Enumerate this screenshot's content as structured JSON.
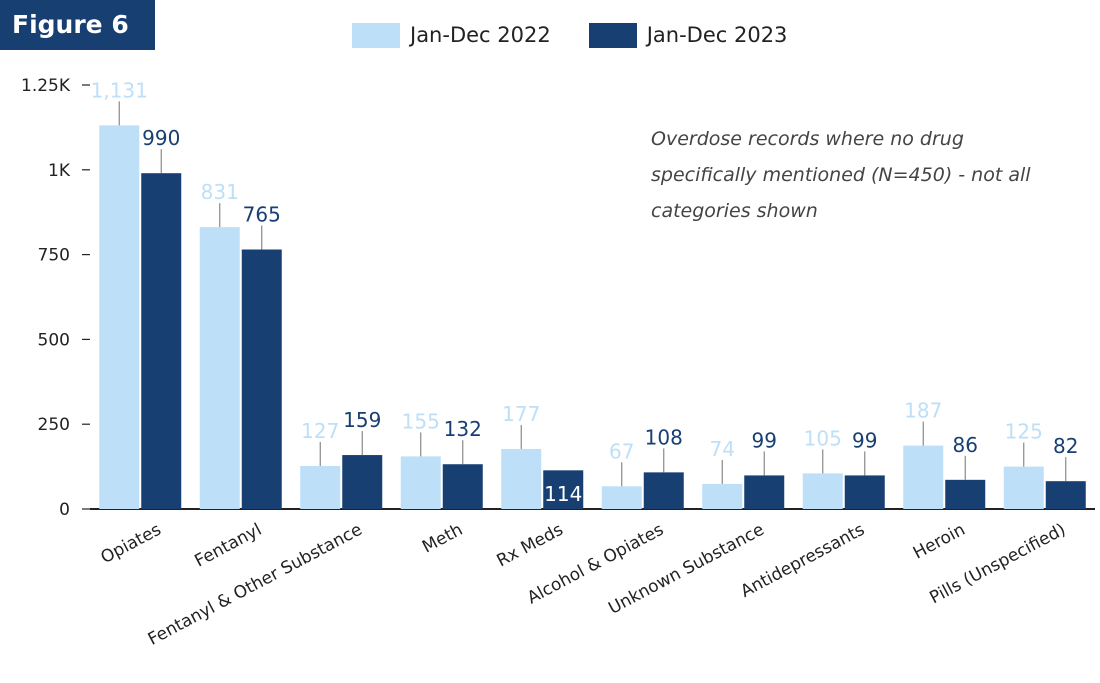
{
  "figure_label": "Figure 6",
  "note": "Overdose records where no drug specifically mentioned (N=450) - not all categories shown",
  "colors": {
    "series_2022": "#bddff8",
    "series_2023": "#173f72",
    "badge": "#173f72"
  },
  "chart_data": {
    "type": "bar",
    "categories": [
      "Opiates",
      "Fentanyl",
      "Fentanyl & Other Substance",
      "Meth",
      "Rx Meds",
      "Alcohol & Opiates",
      "Unknown Substance",
      "Antidepressants",
      "Heroin",
      "Pills (Unspecified)"
    ],
    "series": [
      {
        "name": "Jan-Dec 2022",
        "values": [
          1131,
          831,
          127,
          155,
          177,
          67,
          74,
          105,
          187,
          125
        ],
        "labels": [
          "1,131",
          "831",
          "127",
          "155",
          "177",
          "67",
          "74",
          "105",
          "187",
          "125"
        ]
      },
      {
        "name": "Jan-Dec 2023",
        "values": [
          990,
          765,
          159,
          132,
          114,
          108,
          99,
          99,
          86,
          82
        ],
        "labels": [
          "990",
          "765",
          "159",
          "132",
          "114",
          "108",
          "99",
          "99",
          "86",
          "82"
        ]
      }
    ],
    "yticks": [
      0,
      250,
      500,
      750,
      1000,
      1250
    ],
    "ytick_labels": [
      "0",
      "250",
      "500",
      "750",
      "1K",
      "1.25K"
    ],
    "ylim": [
      0,
      1250
    ],
    "legend_position": "top-center",
    "grid": false
  }
}
